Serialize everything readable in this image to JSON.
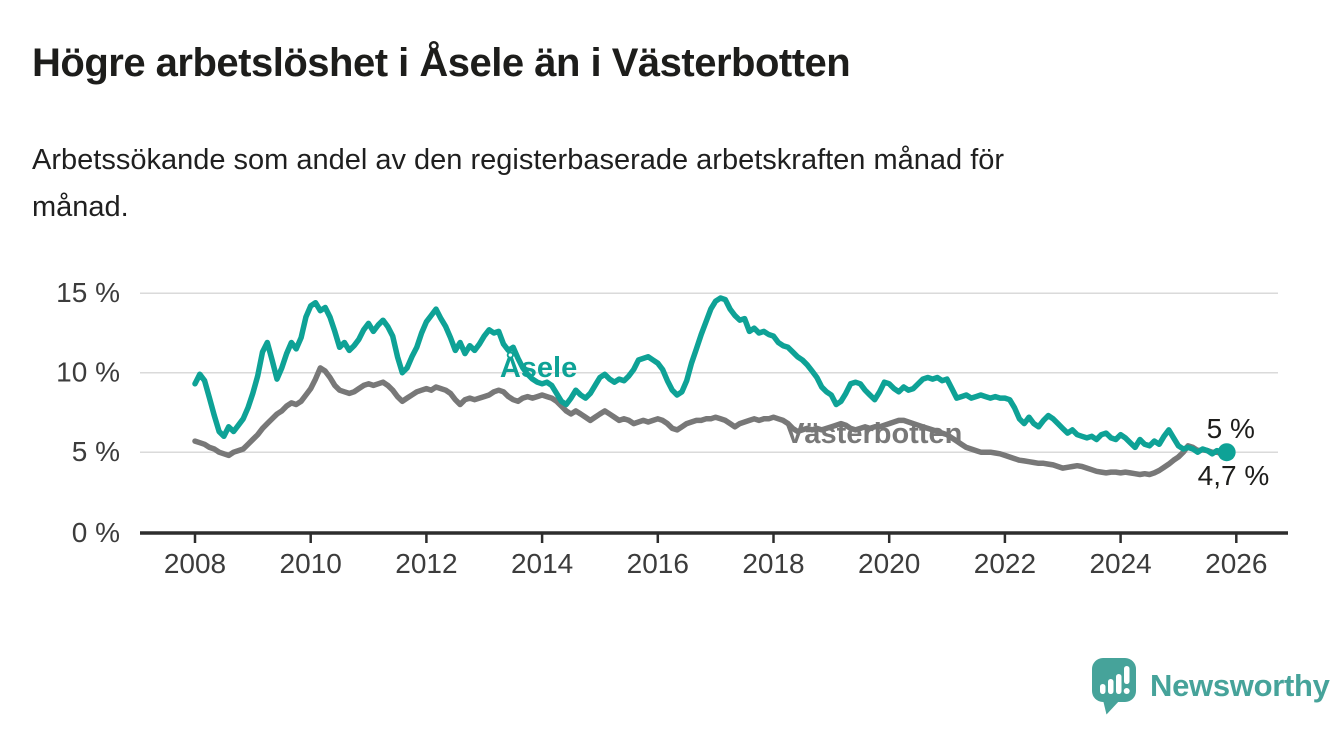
{
  "header": {
    "title": "Högre arbetslöshet i Åsele än i Västerbotten",
    "subtitle_lines": [
      "Arbetssökande som andel av den registerbaserade arbetskraften månad för",
      "månad."
    ]
  },
  "footer": {
    "brand": "Newsworthy"
  },
  "colors": {
    "accent_teal": "#0ea296",
    "series_gray": "#787878",
    "logo_teal": "#46a39a",
    "axis": "#2d2d2d",
    "grid": "#dadada",
    "tick_label": "#3c3c3c",
    "annotation": "#1d1d1b"
  },
  "chart_data": {
    "type": "line",
    "title": "Högre arbetslöshet i Åsele än i Västerbotten",
    "subtitle": "Arbetssökande som andel av den registerbaserade arbetskraften månad för månad.",
    "unit": "%",
    "grid": "horizontal-only",
    "legend_position": "inline-labels-on-lines",
    "x_start": 2008.0,
    "x_step": 0.083333,
    "x_axis_range": [
      2007.05,
      2026.85
    ],
    "y_axis_range": [
      0,
      15.8
    ],
    "x_ticks": [
      2008,
      2010,
      2012,
      2014,
      2016,
      2018,
      2020,
      2022,
      2024,
      2026
    ],
    "y_ticks": [
      {
        "value": 0,
        "label": "0 %"
      },
      {
        "value": 5,
        "label": "5 %"
      },
      {
        "value": 10,
        "label": "10 %"
      },
      {
        "value": 15,
        "label": "15 %"
      }
    ],
    "series": [
      {
        "name": "Åsele",
        "color": "#0ea296",
        "label": "Åsele",
        "label_at": [
          2013.27,
          9.73
        ],
        "end_label": "5 %",
        "end_label_offset": [
          -20,
          -14
        ],
        "end_dot": true,
        "values": [
          9.3,
          9.9,
          9.5,
          8.4,
          7.3,
          6.3,
          6.0,
          6.6,
          6.3,
          6.7,
          7.1,
          7.8,
          8.7,
          9.8,
          11.3,
          11.9,
          10.8,
          9.6,
          10.3,
          11.2,
          11.9,
          11.5,
          12.2,
          13.5,
          14.2,
          14.4,
          13.9,
          14.1,
          13.5,
          12.6,
          11.6,
          11.9,
          11.4,
          11.7,
          12.1,
          12.7,
          13.1,
          12.6,
          13.0,
          13.3,
          12.9,
          12.3,
          11.0,
          10.0,
          10.3,
          11.0,
          11.6,
          12.5,
          13.2,
          13.6,
          14.0,
          13.4,
          12.9,
          12.2,
          11.4,
          11.9,
          11.2,
          11.7,
          11.4,
          11.8,
          12.3,
          12.7,
          12.5,
          12.6,
          11.8,
          11.4,
          11.6,
          10.9,
          10.3,
          9.9,
          9.6,
          9.4,
          9.3,
          9.4,
          9.2,
          8.7,
          8.2,
          8.0,
          8.4,
          8.9,
          8.6,
          8.4,
          8.7,
          9.2,
          9.7,
          9.9,
          9.6,
          9.4,
          9.6,
          9.5,
          9.8,
          10.2,
          10.8,
          10.9,
          11.0,
          10.8,
          10.6,
          10.2,
          9.5,
          8.9,
          8.6,
          8.8,
          9.5,
          10.6,
          11.5,
          12.4,
          13.2,
          14.0,
          14.5,
          14.7,
          14.6,
          14.0,
          13.6,
          13.3,
          13.4,
          12.6,
          12.8,
          12.5,
          12.6,
          12.4,
          12.3,
          11.9,
          11.7,
          11.6,
          11.3,
          11.0,
          10.8,
          10.5,
          10.1,
          9.7,
          9.1,
          8.8,
          8.6,
          8.0,
          8.2,
          8.7,
          9.3,
          9.4,
          9.3,
          8.9,
          8.6,
          8.3,
          8.8,
          9.4,
          9.3,
          9.0,
          8.8,
          9.1,
          8.9,
          9.0,
          9.3,
          9.6,
          9.7,
          9.6,
          9.7,
          9.5,
          9.6,
          9.0,
          8.4,
          8.5,
          8.6,
          8.4,
          8.5,
          8.6,
          8.5,
          8.4,
          8.5,
          8.4,
          8.4,
          8.3,
          7.8,
          7.1,
          6.8,
          7.2,
          6.8,
          6.6,
          7.0,
          7.3,
          7.1,
          6.8,
          6.5,
          6.2,
          6.4,
          6.1,
          6.0,
          5.9,
          6.0,
          5.8,
          6.1,
          6.2,
          5.9,
          5.8,
          6.1,
          5.9,
          5.6,
          5.3,
          5.8,
          5.5,
          5.4,
          5.7,
          5.5,
          6.0,
          6.4,
          5.9,
          5.4,
          5.2,
          5.3,
          5.2,
          5.0,
          5.2,
          5.1,
          4.9,
          5.1,
          5.0,
          5.0
        ]
      },
      {
        "name": "Västerbotten",
        "color": "#787878",
        "label": "Västerbotten",
        "label_at": [
          2018.2,
          5.58
        ],
        "end_label": "4,7 %",
        "end_label_offset": [
          -29,
          28
        ],
        "end_dot": false,
        "values": [
          5.7,
          5.6,
          5.5,
          5.3,
          5.2,
          5.0,
          4.9,
          4.8,
          5.0,
          5.1,
          5.2,
          5.5,
          5.8,
          6.1,
          6.5,
          6.8,
          7.1,
          7.4,
          7.6,
          7.9,
          8.1,
          8.0,
          8.2,
          8.6,
          9.0,
          9.6,
          10.3,
          10.1,
          9.7,
          9.2,
          8.9,
          8.8,
          8.7,
          8.8,
          9.0,
          9.2,
          9.3,
          9.2,
          9.3,
          9.4,
          9.2,
          8.9,
          8.5,
          8.2,
          8.4,
          8.6,
          8.8,
          8.9,
          9.0,
          8.9,
          9.1,
          9.0,
          8.9,
          8.7,
          8.3,
          8.0,
          8.3,
          8.4,
          8.3,
          8.4,
          8.5,
          8.6,
          8.8,
          8.9,
          8.8,
          8.5,
          8.3,
          8.2,
          8.4,
          8.5,
          8.4,
          8.5,
          8.6,
          8.5,
          8.4,
          8.2,
          7.9,
          7.6,
          7.4,
          7.6,
          7.4,
          7.2,
          7.0,
          7.2,
          7.4,
          7.6,
          7.4,
          7.2,
          7.0,
          7.1,
          7.0,
          6.8,
          6.9,
          7.0,
          6.9,
          7.0,
          7.1,
          7.0,
          6.8,
          6.5,
          6.4,
          6.6,
          6.8,
          6.9,
          7.0,
          7.0,
          7.1,
          7.1,
          7.2,
          7.1,
          7.0,
          6.8,
          6.6,
          6.8,
          6.9,
          7.0,
          7.1,
          7.0,
          7.1,
          7.1,
          7.2,
          7.1,
          7.0,
          6.8,
          6.5,
          6.3,
          6.4,
          6.5,
          6.4,
          6.5,
          6.4,
          6.5,
          6.6,
          6.7,
          6.8,
          6.7,
          6.5,
          6.4,
          6.5,
          6.6,
          6.5,
          6.6,
          6.6,
          6.7,
          6.8,
          6.9,
          7.0,
          7.0,
          6.9,
          6.8,
          6.7,
          6.6,
          6.5,
          6.4,
          6.3,
          6.2,
          6.1,
          5.9,
          5.7,
          5.5,
          5.3,
          5.2,
          5.1,
          5.0,
          5.0,
          5.0,
          4.95,
          4.9,
          4.8,
          4.7,
          4.6,
          4.5,
          4.45,
          4.4,
          4.35,
          4.3,
          4.3,
          4.25,
          4.2,
          4.1,
          4.0,
          4.05,
          4.1,
          4.15,
          4.1,
          4.0,
          3.9,
          3.8,
          3.75,
          3.7,
          3.75,
          3.75,
          3.7,
          3.75,
          3.7,
          3.65,
          3.6,
          3.65,
          3.6,
          3.7,
          3.85,
          4.05,
          4.25,
          4.5,
          4.7,
          5.0,
          5.4,
          5.3,
          5.1,
          5.15,
          5.1,
          5.0,
          5.0,
          4.9,
          4.7
        ]
      }
    ]
  }
}
